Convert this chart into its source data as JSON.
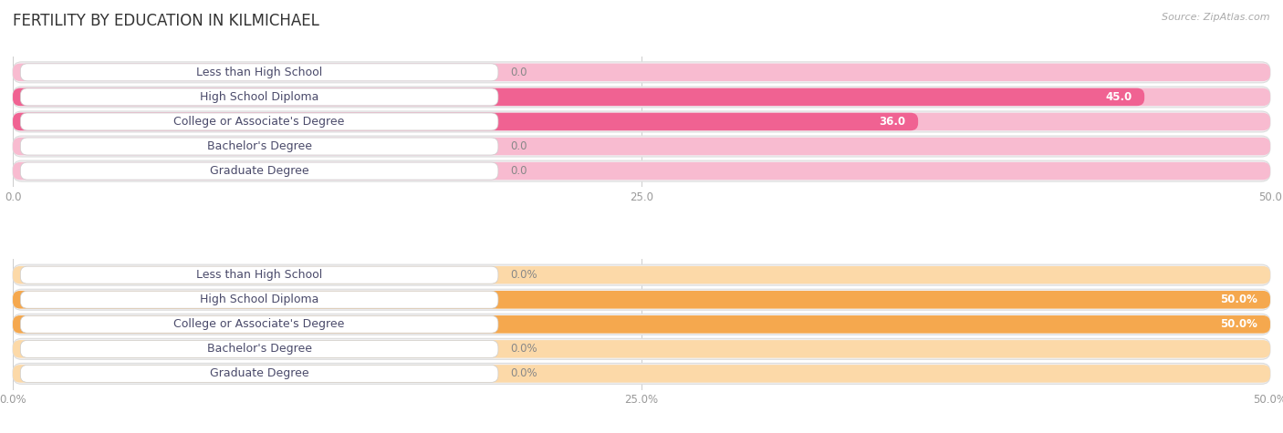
{
  "title": "FERTILITY BY EDUCATION IN KILMICHAEL",
  "source": "Source: ZipAtlas.com",
  "top_chart": {
    "categories": [
      "Less than High School",
      "High School Diploma",
      "College or Associate's Degree",
      "Bachelor's Degree",
      "Graduate Degree"
    ],
    "values": [
      0.0,
      45.0,
      36.0,
      0.0,
      0.0
    ],
    "bar_color_full": "#f06292",
    "bar_color_empty": "#f8bbd0",
    "row_bg": "#f0f0f0",
    "xlim": [
      0,
      50
    ],
    "xticks": [
      0.0,
      25.0,
      50.0
    ],
    "is_percent": false
  },
  "bottom_chart": {
    "categories": [
      "Less than High School",
      "High School Diploma",
      "College or Associate's Degree",
      "Bachelor's Degree",
      "Graduate Degree"
    ],
    "values": [
      0.0,
      50.0,
      50.0,
      0.0,
      0.0
    ],
    "bar_color_full": "#f5a84e",
    "bar_color_empty": "#fcd9a8",
    "row_bg": "#f0f0f0",
    "xlim": [
      0,
      50
    ],
    "xticks": [
      0.0,
      25.0,
      50.0
    ],
    "is_percent": true
  },
  "label_text_color": "#4a4a6a",
  "value_label_color_inside": "#ffffff",
  "value_label_color_outside": "#888888",
  "font_size_title": 12,
  "font_size_labels": 9,
  "font_size_values": 8.5,
  "font_size_ticks": 8.5,
  "font_size_source": 8
}
